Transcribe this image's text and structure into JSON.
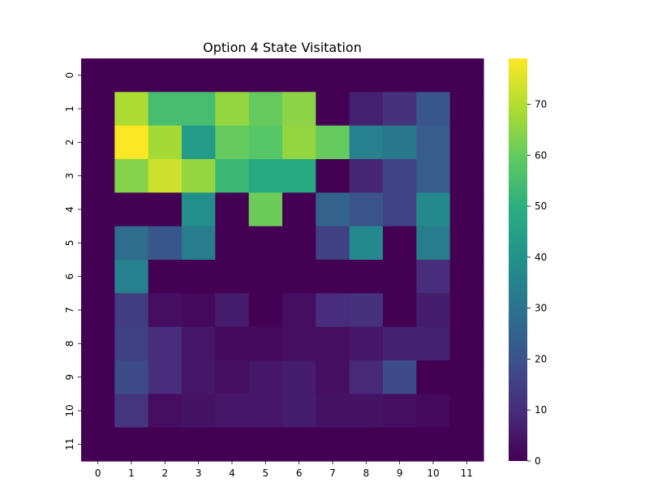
{
  "chart_data": {
    "type": "heatmap",
    "title": "Option 4 State Visitation",
    "xlabel": "",
    "ylabel": "",
    "x_ticks": [
      "0",
      "1",
      "2",
      "3",
      "4",
      "5",
      "6",
      "7",
      "8",
      "9",
      "10",
      "11"
    ],
    "y_ticks": [
      "0",
      "1",
      "2",
      "3",
      "4",
      "5",
      "6",
      "7",
      "8",
      "9",
      "10",
      "11"
    ],
    "colormap": "viridis",
    "vmin": 0,
    "vmax": 79,
    "colorbar_ticks": [
      0,
      10,
      20,
      30,
      40,
      50,
      60,
      70
    ],
    "colorbar_labels": [
      "0",
      "10",
      "20",
      "30",
      "40",
      "50",
      "60",
      "70"
    ],
    "values": [
      [
        0,
        0,
        0,
        0,
        0,
        0,
        0,
        0,
        0,
        0,
        0,
        0
      ],
      [
        0,
        69,
        55,
        55,
        66,
        60,
        65,
        0,
        7,
        11,
        21,
        0
      ],
      [
        0,
        79,
        68,
        43,
        60,
        58,
        66,
        60,
        34,
        32,
        23,
        0
      ],
      [
        0,
        64,
        73,
        66,
        53,
        48,
        48,
        0,
        8,
        16,
        23,
        0
      ],
      [
        0,
        0,
        0,
        39,
        0,
        61,
        0,
        25,
        20,
        16,
        37,
        0
      ],
      [
        0,
        28,
        21,
        33,
        0,
        0,
        0,
        15,
        37,
        0,
        33,
        0
      ],
      [
        0,
        34,
        0,
        0,
        0,
        0,
        0,
        0,
        0,
        0,
        10,
        0
      ],
      [
        0,
        14,
        3,
        2,
        6,
        0,
        3,
        10,
        11,
        0,
        6,
        0
      ],
      [
        0,
        15,
        10,
        5,
        2,
        2,
        3,
        3,
        5,
        7,
        7,
        0
      ],
      [
        0,
        18,
        10,
        5,
        3,
        5,
        6,
        3,
        9,
        18,
        0,
        0
      ],
      [
        0,
        12,
        3,
        4,
        5,
        5,
        6,
        4,
        4,
        3,
        2,
        0
      ],
      [
        0,
        0,
        0,
        0,
        0,
        0,
        0,
        0,
        0,
        0,
        0,
        0
      ]
    ]
  }
}
